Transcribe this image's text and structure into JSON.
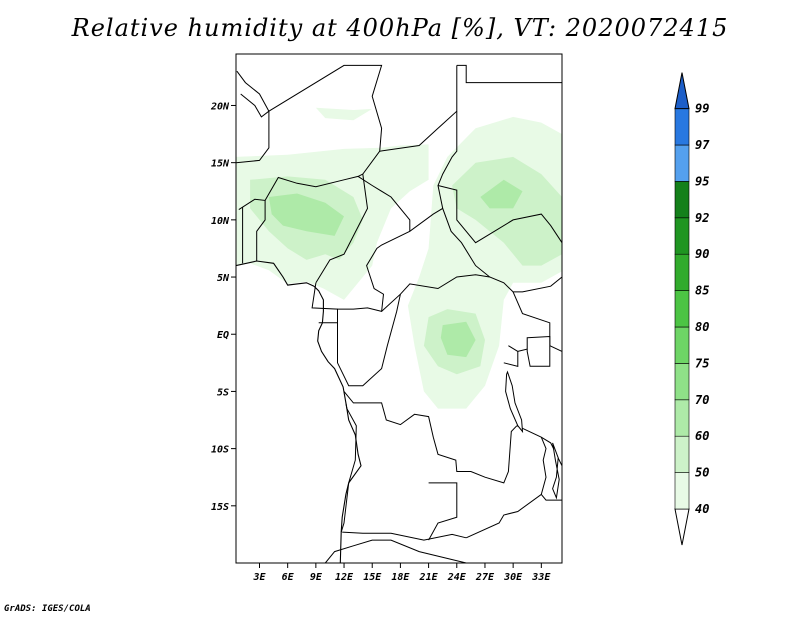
{
  "title": "Relative humidity at 400hPa [%], VT: 2020072415",
  "credit": "GrADS: IGES/COLA",
  "map": {
    "lat_range": [
      -20,
      24.5
    ],
    "lon_range": [
      0.5,
      35.2
    ],
    "lat_ticks": [
      {
        "v": 20,
        "label": "20N"
      },
      {
        "v": 15,
        "label": "15N"
      },
      {
        "v": 10,
        "label": "10N"
      },
      {
        "v": 5,
        "label": "5N"
      },
      {
        "v": 0,
        "label": "EQ"
      },
      {
        "v": -5,
        "label": "5S"
      },
      {
        "v": -10,
        "label": "10S"
      },
      {
        "v": -15,
        "label": "15S"
      }
    ],
    "lon_ticks": [
      {
        "v": 3,
        "label": "3E"
      },
      {
        "v": 6,
        "label": "6E"
      },
      {
        "v": 9,
        "label": "9E"
      },
      {
        "v": 12,
        "label": "12E"
      },
      {
        "v": 15,
        "label": "15E"
      },
      {
        "v": 18,
        "label": "18E"
      },
      {
        "v": 21,
        "label": "21E"
      },
      {
        "v": 24,
        "label": "24E"
      },
      {
        "v": 27,
        "label": "27E"
      },
      {
        "v": 30,
        "label": "30E"
      },
      {
        "v": 33,
        "label": "33E"
      }
    ],
    "humid_regions": [
      {
        "level": 50,
        "pts": [
          [
            0.5,
            15.5
          ],
          [
            6,
            15.7
          ],
          [
            12,
            16.2
          ],
          [
            16,
            16.3
          ],
          [
            18,
            16.5
          ],
          [
            21,
            16.6
          ],
          [
            21,
            13.5
          ],
          [
            19,
            12.5
          ],
          [
            17,
            11
          ],
          [
            15.5,
            8
          ],
          [
            15,
            6
          ],
          [
            13.5,
            4.5
          ],
          [
            12,
            3
          ],
          [
            9.8,
            4
          ],
          [
            8,
            4.6
          ],
          [
            6,
            4.4
          ],
          [
            4,
            5.6
          ],
          [
            2,
            6.2
          ],
          [
            0.5,
            6
          ]
        ]
      },
      {
        "level": 50,
        "pts": [
          [
            9,
            19.8
          ],
          [
            13,
            19.6
          ],
          [
            15,
            19.7
          ],
          [
            13,
            18.7
          ],
          [
            10,
            18.9
          ]
        ]
      },
      {
        "level": 50,
        "pts": [
          [
            21.5,
            13
          ],
          [
            23,
            15.5
          ],
          [
            26,
            18
          ],
          [
            30,
            19
          ],
          [
            33,
            18.5
          ],
          [
            35.2,
            17.5
          ],
          [
            35.2,
            5.5
          ],
          [
            33,
            4.5
          ],
          [
            30,
            4.5
          ],
          [
            29,
            3
          ],
          [
            28.5,
            -1
          ],
          [
            27,
            -4.5
          ],
          [
            25,
            -6.5
          ],
          [
            22,
            -6.5
          ],
          [
            20.5,
            -5
          ],
          [
            19.5,
            -1
          ],
          [
            18.8,
            2.5
          ],
          [
            20,
            5
          ],
          [
            21,
            7.5
          ]
        ]
      },
      {
        "level": 60,
        "pts": [
          [
            2,
            13.5
          ],
          [
            6,
            13.8
          ],
          [
            10,
            13.5
          ],
          [
            13,
            12
          ],
          [
            14,
            10
          ],
          [
            13,
            8
          ],
          [
            11.5,
            6.5
          ],
          [
            10,
            7
          ],
          [
            8,
            6.5
          ],
          [
            6,
            7.5
          ],
          [
            4,
            9
          ],
          [
            2,
            11
          ]
        ]
      },
      {
        "level": 60,
        "pts": [
          [
            23.5,
            13
          ],
          [
            26,
            15
          ],
          [
            30,
            15.5
          ],
          [
            33,
            14
          ],
          [
            35.2,
            12
          ],
          [
            35.2,
            7
          ],
          [
            33,
            6
          ],
          [
            31,
            6
          ],
          [
            29,
            8
          ],
          [
            26,
            10
          ],
          [
            24,
            11
          ]
        ]
      },
      {
        "level": 60,
        "pts": [
          [
            21,
            1.5
          ],
          [
            23,
            2.2
          ],
          [
            26,
            1.8
          ],
          [
            27,
            -0.5
          ],
          [
            26.5,
            -2.8
          ],
          [
            24,
            -3.5
          ],
          [
            22,
            -2.8
          ],
          [
            20.5,
            -1
          ]
        ]
      },
      {
        "level": 70,
        "pts": [
          [
            4,
            12
          ],
          [
            7,
            12.3
          ],
          [
            10,
            11.5
          ],
          [
            12,
            10.3
          ],
          [
            11,
            8.6
          ],
          [
            8,
            9
          ],
          [
            5.5,
            9.5
          ],
          [
            4.3,
            10.5
          ]
        ]
      },
      {
        "level": 70,
        "pts": [
          [
            22.5,
            0.8
          ],
          [
            25,
            1.1
          ],
          [
            26,
            -0.5
          ],
          [
            25,
            -2
          ],
          [
            23,
            -1.8
          ],
          [
            22.3,
            -0.3
          ]
        ]
      },
      {
        "level": 70,
        "pts": [
          [
            26.5,
            12
          ],
          [
            29,
            13.5
          ],
          [
            31,
            12.5
          ],
          [
            30,
            11
          ],
          [
            27.5,
            11
          ]
        ]
      }
    ],
    "borders": [
      [
        [
          0.5,
          15
        ],
        [
          3,
          15.2
        ],
        [
          4,
          16.3
        ],
        [
          4,
          19.5
        ],
        [
          12,
          23.5
        ],
        [
          16,
          23.5
        ],
        [
          15,
          20.8
        ],
        [
          16,
          18
        ],
        [
          15.8,
          16
        ],
        [
          14,
          14
        ],
        [
          14.5,
          11
        ],
        [
          13,
          8.6
        ],
        [
          12,
          7
        ],
        [
          10.5,
          6.5
        ],
        [
          9,
          4.5
        ]
      ],
      [
        [
          0.8,
          10.9
        ],
        [
          2.5,
          11.8
        ],
        [
          3.6,
          11.7
        ],
        [
          3.6,
          10
        ],
        [
          2.7,
          9
        ],
        [
          2.7,
          6.4
        ]
      ],
      [
        [
          3.6,
          11.7
        ],
        [
          5,
          13.7
        ],
        [
          7,
          13.2
        ],
        [
          9,
          12.9
        ],
        [
          12,
          13.5
        ],
        [
          13.5,
          13.8
        ],
        [
          14,
          14
        ]
      ],
      [
        [
          1.2,
          11.1
        ],
        [
          1.2,
          6.2
        ]
      ],
      [
        [
          9,
          4.5
        ],
        [
          8.6,
          2.3
        ],
        [
          11.3,
          2.2
        ],
        [
          11.3,
          1
        ],
        [
          9.8,
          1
        ],
        [
          9.3,
          1
        ]
      ],
      [
        [
          11.3,
          2.2
        ],
        [
          13,
          2.2
        ],
        [
          14.5,
          2.3
        ],
        [
          16,
          2
        ],
        [
          16.2,
          3.5
        ],
        [
          15.2,
          4
        ],
        [
          14.4,
          6
        ],
        [
          15.5,
          7.5
        ],
        [
          16,
          7.8
        ],
        [
          19,
          9
        ],
        [
          21.5,
          10.5
        ],
        [
          22.5,
          11
        ],
        [
          23.4,
          9
        ],
        [
          24.5,
          8
        ],
        [
          26,
          6
        ],
        [
          27.5,
          5
        ],
        [
          29,
          4.5
        ],
        [
          30,
          3.7
        ],
        [
          31,
          3.7
        ],
        [
          34,
          4.2
        ],
        [
          35.2,
          5
        ]
      ],
      [
        [
          13.5,
          13.8
        ],
        [
          15,
          13
        ],
        [
          17,
          12
        ],
        [
          19,
          10
        ],
        [
          19,
          9
        ]
      ],
      [
        [
          15.8,
          16
        ],
        [
          20,
          16.5
        ],
        [
          22,
          18
        ],
        [
          24,
          19.5
        ],
        [
          24,
          23.5
        ]
      ],
      [
        [
          24,
          19.5
        ],
        [
          24,
          16
        ],
        [
          23.5,
          15.5
        ],
        [
          22.5,
          14
        ],
        [
          22,
          13
        ],
        [
          22.5,
          11
        ]
      ],
      [
        [
          24,
          23.5
        ],
        [
          25,
          23.5
        ],
        [
          25,
          22
        ],
        [
          35.2,
          22
        ]
      ],
      [
        [
          22,
          13
        ],
        [
          24,
          12.6
        ],
        [
          24,
          10
        ],
        [
          26,
          8
        ],
        [
          28,
          9
        ],
        [
          30,
          10
        ],
        [
          33,
          10.5
        ],
        [
          34,
          9.5
        ],
        [
          35.2,
          8
        ]
      ],
      [
        [
          16,
          2
        ],
        [
          18,
          3.5
        ],
        [
          19,
          4.4
        ],
        [
          22,
          4
        ],
        [
          24,
          5
        ],
        [
          26,
          5.2
        ],
        [
          27.5,
          5
        ]
      ],
      [
        [
          11.3,
          1
        ],
        [
          11.3,
          -2.5
        ],
        [
          12.5,
          -4.5
        ],
        [
          14,
          -4.5
        ],
        [
          16,
          -3
        ],
        [
          16.6,
          -1
        ],
        [
          17.6,
          2
        ],
        [
          18,
          3.5
        ]
      ],
      [
        [
          29.5,
          -1
        ],
        [
          30.5,
          -1.5
        ],
        [
          30.5,
          -2.8
        ],
        [
          29,
          -2.5
        ]
      ],
      [
        [
          30,
          3.7
        ],
        [
          31,
          1.8
        ],
        [
          33.9,
          1
        ],
        [
          33.9,
          -1
        ]
      ],
      [
        [
          12,
          -5
        ],
        [
          13,
          -6
        ],
        [
          16,
          -6
        ],
        [
          16.5,
          -7.5
        ],
        [
          18,
          -7.9
        ],
        [
          19.5,
          -7
        ],
        [
          21,
          -7.2
        ],
        [
          21.5,
          -9
        ],
        [
          22,
          -10.5
        ],
        [
          23.9,
          -11
        ],
        [
          24,
          -12
        ],
        [
          25.5,
          -12
        ],
        [
          27,
          -12.5
        ],
        [
          29,
          -13
        ],
        [
          29.5,
          -12
        ],
        [
          29.8,
          -8.5
        ],
        [
          30.4,
          -8
        ]
      ],
      [
        [
          12.2,
          -6
        ],
        [
          12.3,
          -6.5
        ],
        [
          13.3,
          -8
        ],
        [
          13.2,
          -11
        ],
        [
          12.5,
          -13
        ],
        [
          12,
          -16.5
        ],
        [
          11.7,
          -17.3
        ]
      ],
      [
        [
          11.8,
          -17.3
        ],
        [
          14,
          -17.4
        ],
        [
          17,
          -17.4
        ],
        [
          20.5,
          -18
        ],
        [
          23.5,
          -17.5
        ],
        [
          25,
          -17.8
        ]
      ],
      [
        [
          21,
          -13
        ],
        [
          22,
          -13
        ],
        [
          24,
          -13
        ],
        [
          24,
          -16
        ],
        [
          22,
          -16.5
        ],
        [
          21,
          -18
        ]
      ],
      [
        [
          33,
          -9
        ],
        [
          33.5,
          -10
        ],
        [
          33.2,
          -11
        ],
        [
          33.5,
          -12.5
        ],
        [
          33,
          -14
        ],
        [
          30.5,
          -15.5
        ],
        [
          29,
          -15.8
        ],
        [
          28.5,
          -16.5
        ],
        [
          25,
          -17.8
        ]
      ],
      [
        [
          33,
          -14
        ],
        [
          33.5,
          -14.5
        ],
        [
          35.2,
          -14.5
        ]
      ],
      [
        [
          30.4,
          -8
        ],
        [
          33,
          -9
        ],
        [
          34,
          -9.5
        ],
        [
          35.2,
          -11.5
        ]
      ],
      [
        [
          33.9,
          -1
        ],
        [
          35.2,
          -1.5
        ]
      ],
      [
        [
          30.5,
          -1.5
        ],
        [
          33,
          -1
        ]
      ],
      [
        [
          10,
          -20
        ],
        [
          11,
          -19
        ],
        [
          13,
          -18.5
        ],
        [
          15,
          -18
        ],
        [
          17,
          -18
        ],
        [
          20,
          -19
        ],
        [
          25,
          -20
        ]
      ],
      [
        [
          1,
          21
        ],
        [
          2.5,
          20
        ],
        [
          3.2,
          19
        ],
        [
          4,
          19.5
        ]
      ],
      [
        [
          0.6,
          23
        ],
        [
          1.5,
          22
        ],
        [
          3,
          21
        ],
        [
          4,
          19.5
        ]
      ]
    ],
    "coast": [
      [
        0.5,
        6
      ],
      [
        2.7,
        6.4
      ],
      [
        4.5,
        6.2
      ],
      [
        5.5,
        5
      ],
      [
        6,
        4.3
      ],
      [
        7,
        4.4
      ],
      [
        8,
        4.5
      ],
      [
        8.8,
        4.2
      ],
      [
        9.3,
        3.8
      ],
      [
        9.8,
        3
      ],
      [
        9.8,
        2
      ],
      [
        9.7,
        1
      ],
      [
        9.3,
        0.3
      ],
      [
        9.2,
        -0.6
      ],
      [
        9.6,
        -1.5
      ],
      [
        10.3,
        -2.4
      ],
      [
        11,
        -3
      ],
      [
        11.9,
        -4.6
      ],
      [
        12.2,
        -6
      ],
      [
        12.5,
        -7.5
      ],
      [
        13.2,
        -8.8
      ],
      [
        13.5,
        -10.5
      ],
      [
        13.8,
        -11.5
      ],
      [
        12.5,
        -13
      ],
      [
        12.2,
        -14
      ],
      [
        11.8,
        -16
      ],
      [
        11.7,
        -17.3
      ],
      [
        11.6,
        -20
      ]
    ],
    "lakes": [
      [
        [
          29.3,
          -3.5
        ],
        [
          29.2,
          -5
        ],
        [
          29.7,
          -6.5
        ],
        [
          30.5,
          -8
        ],
        [
          31,
          -8.5
        ],
        [
          30.9,
          -7.5
        ],
        [
          30.2,
          -6
        ],
        [
          29.9,
          -4.5
        ],
        [
          29.4,
          -3.3
        ]
      ],
      [
        [
          31.5,
          -0.3
        ],
        [
          33.9,
          -0.2
        ],
        [
          33.9,
          -2.8
        ],
        [
          31.8,
          -2.8
        ],
        [
          31.5,
          -1.5
        ]
      ],
      [
        [
          34.2,
          -9.5
        ],
        [
          34.8,
          -10.8
        ],
        [
          34.6,
          -12.5
        ],
        [
          34.2,
          -13.5
        ],
        [
          34.6,
          -14.3
        ],
        [
          34.9,
          -12.7
        ],
        [
          34.5,
          -11
        ]
      ]
    ],
    "colorbar": [
      {
        "label": "40",
        "color": "#ffffff"
      },
      {
        "label": "50",
        "color": "#e8fae6"
      },
      {
        "label": "60",
        "color": "#cdf2c9"
      },
      {
        "label": "70",
        "color": "#aeeaa8"
      },
      {
        "label": "75",
        "color": "#8fe188"
      },
      {
        "label": "80",
        "color": "#6ed566"
      },
      {
        "label": "85",
        "color": "#4cc444"
      },
      {
        "label": "90",
        "color": "#31ab2c"
      },
      {
        "label": "92",
        "color": "#1f9521"
      },
      {
        "label": "95",
        "color": "#14801a"
      },
      {
        "label": "97",
        "color": "#54a0ee"
      },
      {
        "label": "99",
        "color": "#2878e0"
      }
    ],
    "colorbar_top_color": "#1c5ec8",
    "level_colors": {
      "50": "#e8fae6",
      "60": "#cdf2c9",
      "70": "#aeeaa8"
    }
  }
}
